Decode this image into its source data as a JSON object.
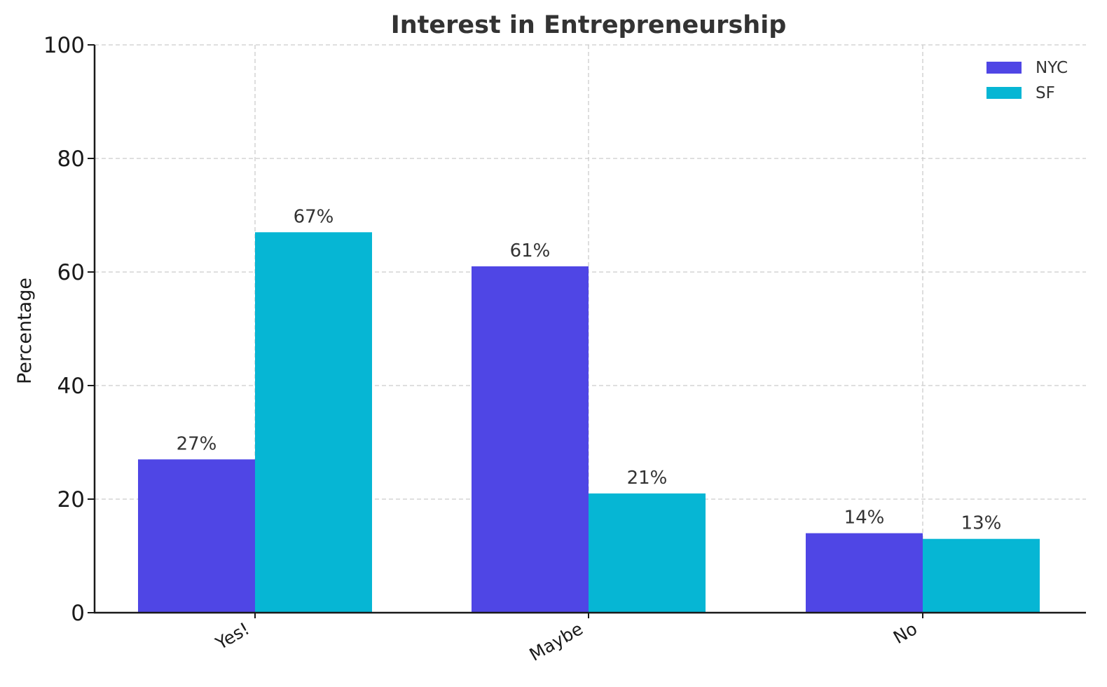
{
  "chart_data": {
    "type": "bar",
    "title": "Interest in Entrepreneurship",
    "xlabel": "",
    "ylabel": "Percentage",
    "categories": [
      "Yes!",
      "Maybe",
      "No"
    ],
    "series": [
      {
        "name": "NYC",
        "color": "#4f46e5",
        "values": [
          27,
          61,
          14
        ],
        "labels": [
          "27%",
          "61%",
          "14%"
        ]
      },
      {
        "name": "SF",
        "color": "#06b6d4",
        "values": [
          67,
          21,
          13
        ],
        "labels": [
          "67%",
          "21%",
          "13%"
        ]
      }
    ],
    "ylim": [
      0,
      100
    ],
    "yticks": [
      0,
      20,
      40,
      60,
      80,
      100
    ],
    "ytick_labels": [
      "0",
      "20",
      "40",
      "60",
      "80",
      "100"
    ],
    "grid": true,
    "legend_position": "top-right"
  }
}
